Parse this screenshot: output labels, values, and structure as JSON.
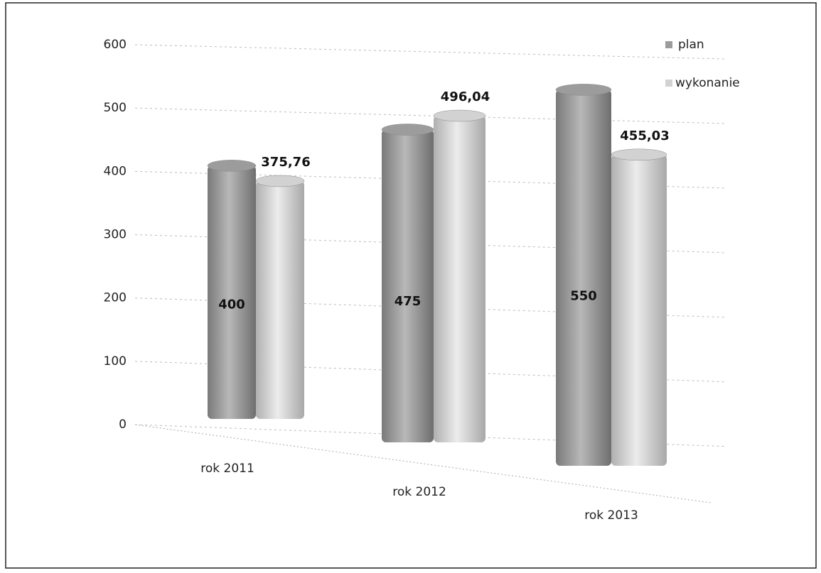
{
  "chart_data": {
    "type": "bar",
    "categories": [
      "rok 2011",
      "rok 2012",
      "rok 2013"
    ],
    "series": [
      {
        "name": "plan",
        "color": "#9c9c9c",
        "values": [
          400,
          475,
          550
        ]
      },
      {
        "name": "wykonanie",
        "color": "#d2d2d2",
        "values": [
          375.76,
          496.04,
          455.03
        ],
        "value_labels": [
          "375,76",
          "496,04",
          "455,03"
        ]
      }
    ],
    "ylim": [
      0,
      600
    ],
    "yticks": [
      0,
      100,
      200,
      300,
      400,
      500,
      600
    ],
    "grid": true,
    "legend": "top-right"
  }
}
